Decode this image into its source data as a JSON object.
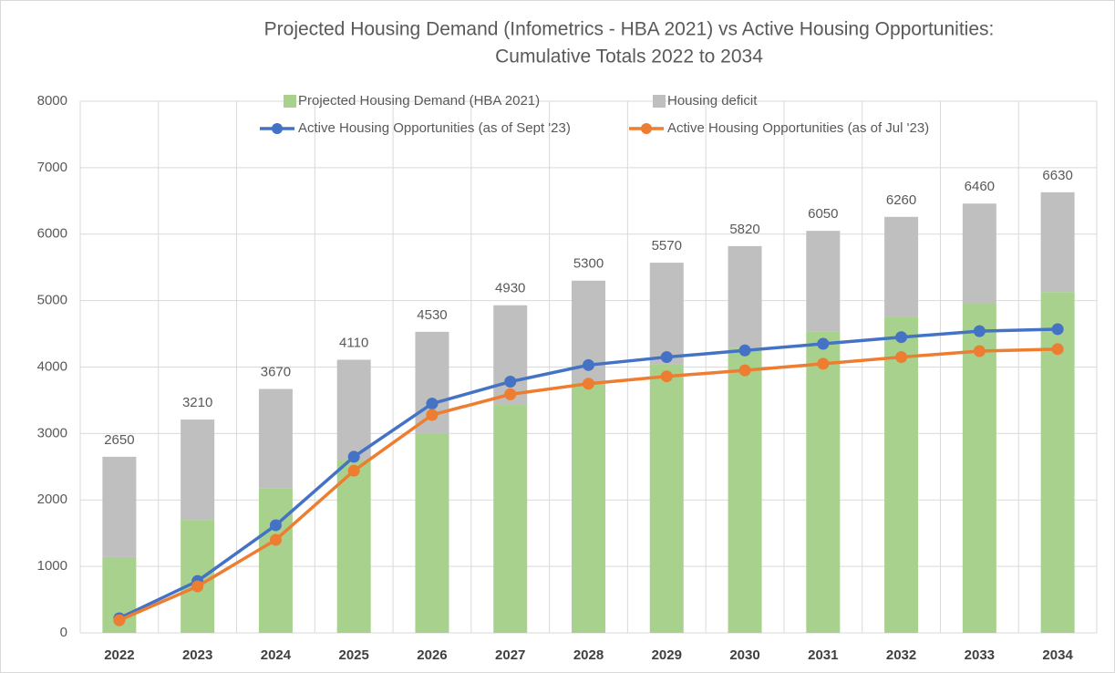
{
  "chart_data": {
    "type": "combo",
    "title": [
      "Projected Housing Demand (Infometrics - HBA 2021) vs Active Housing Opportunities:",
      "Cumulative Totals 2022 to 2034"
    ],
    "categories": [
      "2022",
      "2023",
      "2024",
      "2025",
      "2026",
      "2027",
      "2028",
      "2029",
      "2030",
      "2031",
      "2032",
      "2033",
      "2034"
    ],
    "series": [
      {
        "name": "Projected Housing Demand (HBA 2021)",
        "type": "bar",
        "color": "#a9d18e",
        "values": [
          1140,
          1700,
          2170,
          2600,
          3000,
          3430,
          3760,
          4040,
          4290,
          4540,
          4760,
          4960,
          5130
        ]
      },
      {
        "name": "Housing deficit",
        "type": "bar",
        "color": "#bfbfbf",
        "values": [
          1510,
          1510,
          1500,
          1510,
          1530,
          1500,
          1540,
          1530,
          1530,
          1510,
          1500,
          1500,
          1500
        ]
      },
      {
        "name": "Active Housing Opportunities (as of Sept '23)",
        "type": "line",
        "color": "#4472c4",
        "values": [
          220,
          780,
          1620,
          2650,
          3450,
          3780,
          4030,
          4150,
          4250,
          4350,
          4450,
          4540,
          4570
        ]
      },
      {
        "name": "Active Housing Opportunities (as of Jul '23)",
        "type": "line",
        "color": "#ed7d31",
        "values": [
          190,
          700,
          1400,
          2440,
          3280,
          3590,
          3750,
          3860,
          3950,
          4050,
          4150,
          4240,
          4270
        ]
      }
    ],
    "total_labels": [
      2650,
      3210,
      3670,
      4110,
      4530,
      4930,
      5300,
      5570,
      5820,
      6050,
      6260,
      6460,
      6630
    ],
    "ylim": [
      0,
      8000
    ],
    "yticks": [
      0,
      1000,
      2000,
      3000,
      4000,
      5000,
      6000,
      7000,
      8000
    ],
    "grid": true
  }
}
